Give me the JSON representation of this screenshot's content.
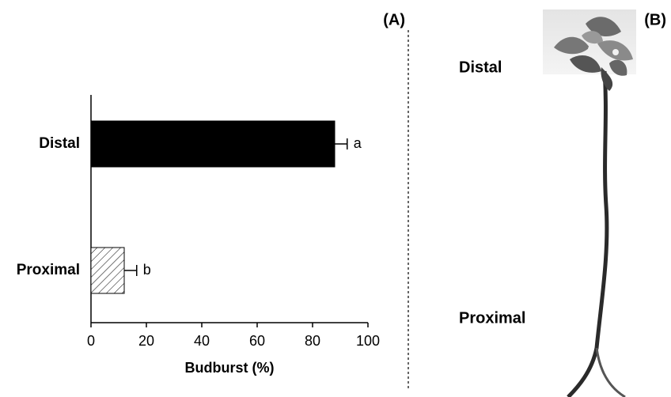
{
  "chart_data": {
    "type": "hbar",
    "panel_label": "(A)",
    "x_label": "Budburst (%)",
    "categories": [
      "Distal",
      "Proximal"
    ],
    "values": [
      88,
      12
    ],
    "errors": [
      4.5,
      4.5
    ],
    "annotations": [
      "a",
      "b"
    ],
    "fills": [
      "#000000",
      "hatched"
    ],
    "xlim": [
      0,
      100
    ],
    "xticks": [
      0,
      20,
      40,
      60,
      80,
      100
    ],
    "grid": false
  },
  "panel_b": {
    "panel_label": "(B)",
    "labels": [
      "Distal",
      "Proximal"
    ]
  }
}
